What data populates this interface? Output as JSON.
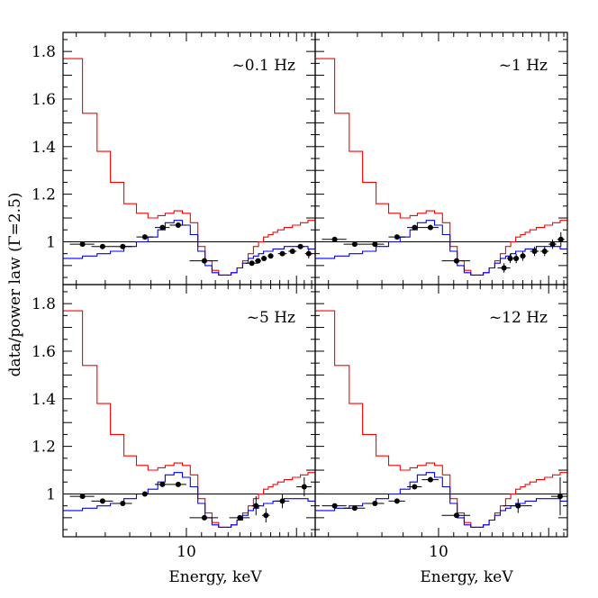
{
  "figure": {
    "ylabel": "data/power law (Γ=2.5)",
    "xlabel": "Energy, keV"
  },
  "chart_data": {
    "type": "scatter",
    "layout": "2x2 panels, shared axes",
    "x_scale": "log",
    "xlim": [
      4.6,
      22.5
    ],
    "ylim": [
      0.82,
      1.88
    ],
    "x_ticks_labeled": [
      10
    ],
    "y_ticks_labeled": [
      1,
      1.2,
      1.4,
      1.6,
      1.8
    ],
    "reference_line_y": 1,
    "colors": {
      "red_model": "#ff0000",
      "blue_model": "#0000ff",
      "data": "#000000",
      "axes": "#000000"
    },
    "red_model": {
      "edges": [
        4.6,
        5.2,
        5.7,
        6.2,
        6.75,
        7.3,
        7.85,
        8.35,
        8.75,
        9.25,
        9.75,
        10.25,
        10.75,
        11.25,
        11.75,
        12.25,
        12.75,
        13.25,
        13.75,
        14.25,
        14.75,
        15.25,
        15.75,
        16.25,
        16.75,
        17.25,
        17.75,
        18.5,
        19.5,
        20.5,
        21.5,
        22.5
      ],
      "values": [
        1.77,
        1.54,
        1.38,
        1.25,
        1.16,
        1.12,
        1.1,
        1.11,
        1.12,
        1.13,
        1.12,
        1.08,
        0.98,
        0.92,
        0.88,
        0.86,
        0.86,
        0.87,
        0.89,
        0.92,
        0.95,
        0.98,
        1.0,
        1.02,
        1.03,
        1.04,
        1.05,
        1.06,
        1.07,
        1.08,
        1.09
      ]
    },
    "blue_model": {
      "edges": [
        4.6,
        5.2,
        5.7,
        6.2,
        6.75,
        7.3,
        7.85,
        8.35,
        8.75,
        9.25,
        9.75,
        10.25,
        10.75,
        11.25,
        11.75,
        12.25,
        12.75,
        13.25,
        13.75,
        14.25,
        14.75,
        15.25,
        15.75,
        16.25,
        16.75,
        17.25,
        17.75,
        18.5,
        19.5,
        20.5,
        21.5,
        22.5
      ],
      "values": [
        0.93,
        0.94,
        0.95,
        0.96,
        0.98,
        1.0,
        1.02,
        1.05,
        1.08,
        1.09,
        1.07,
        1.03,
        0.96,
        0.9,
        0.87,
        0.86,
        0.86,
        0.87,
        0.89,
        0.91,
        0.93,
        0.94,
        0.95,
        0.96,
        0.96,
        0.97,
        0.97,
        0.98,
        0.98,
        0.98,
        0.97
      ]
    },
    "panels": [
      {
        "label": "~0.1 Hz",
        "points": [
          {
            "x": 5.2,
            "y": 0.99,
            "xerr": 0.4,
            "yerr": 0.0
          },
          {
            "x": 5.9,
            "y": 0.98,
            "xerr": 0.4,
            "yerr": 0.0
          },
          {
            "x": 6.7,
            "y": 0.98,
            "xerr": 0.4,
            "yerr": 0.0
          },
          {
            "x": 7.7,
            "y": 1.02,
            "xerr": 0.4,
            "yerr": 0.0
          },
          {
            "x": 8.6,
            "y": 1.06,
            "xerr": 0.4,
            "yerr": 0.0
          },
          {
            "x": 9.5,
            "y": 1.07,
            "xerr": 0.5,
            "yerr": 0.0
          },
          {
            "x": 11.2,
            "y": 0.92,
            "xerr": 1.0,
            "yerr": 0.0
          },
          {
            "x": 15.1,
            "y": 0.91,
            "xerr": 0.6,
            "yerr": 0.01
          },
          {
            "x": 15.7,
            "y": 0.92,
            "xerr": 0.3,
            "yerr": 0.01
          },
          {
            "x": 16.3,
            "y": 0.93,
            "xerr": 0.3,
            "yerr": 0.01
          },
          {
            "x": 17.0,
            "y": 0.94,
            "xerr": 0.3,
            "yerr": 0.01
          },
          {
            "x": 18.3,
            "y": 0.95,
            "xerr": 0.5,
            "yerr": 0.01
          },
          {
            "x": 19.5,
            "y": 0.96,
            "xerr": 0.5,
            "yerr": 0.01
          },
          {
            "x": 20.5,
            "y": 0.98,
            "xerr": 0.5,
            "yerr": 0.01
          },
          {
            "x": 21.6,
            "y": 0.95,
            "xerr": 0.5,
            "yerr": 0.02
          }
        ]
      },
      {
        "label": "~1 Hz",
        "points": [
          {
            "x": 5.2,
            "y": 1.01,
            "xerr": 0.4,
            "yerr": 0.0
          },
          {
            "x": 5.9,
            "y": 0.99,
            "xerr": 0.4,
            "yerr": 0.0
          },
          {
            "x": 6.7,
            "y": 0.99,
            "xerr": 0.4,
            "yerr": 0.0
          },
          {
            "x": 7.7,
            "y": 1.02,
            "xerr": 0.4,
            "yerr": 0.0
          },
          {
            "x": 8.6,
            "y": 1.06,
            "xerr": 0.4,
            "yerr": 0.0
          },
          {
            "x": 9.5,
            "y": 1.06,
            "xerr": 0.5,
            "yerr": 0.0
          },
          {
            "x": 11.2,
            "y": 0.92,
            "xerr": 1.0,
            "yerr": 0.0
          },
          {
            "x": 15.1,
            "y": 0.89,
            "xerr": 0.6,
            "yerr": 0.02
          },
          {
            "x": 15.7,
            "y": 0.93,
            "xerr": 0.3,
            "yerr": 0.02
          },
          {
            "x": 16.3,
            "y": 0.93,
            "xerr": 0.3,
            "yerr": 0.02
          },
          {
            "x": 17.0,
            "y": 0.94,
            "xerr": 0.3,
            "yerr": 0.02
          },
          {
            "x": 18.3,
            "y": 0.96,
            "xerr": 0.5,
            "yerr": 0.02
          },
          {
            "x": 19.5,
            "y": 0.96,
            "xerr": 0.5,
            "yerr": 0.02
          },
          {
            "x": 20.5,
            "y": 0.99,
            "xerr": 0.5,
            "yerr": 0.02
          },
          {
            "x": 21.6,
            "y": 1.01,
            "xerr": 0.5,
            "yerr": 0.03
          }
        ]
      },
      {
        "label": "~5 Hz",
        "points": [
          {
            "x": 5.2,
            "y": 0.99,
            "xerr": 0.4,
            "yerr": 0.0
          },
          {
            "x": 5.9,
            "y": 0.97,
            "xerr": 0.4,
            "yerr": 0.0
          },
          {
            "x": 6.7,
            "y": 0.96,
            "xerr": 0.4,
            "yerr": 0.0
          },
          {
            "x": 7.7,
            "y": 1.0,
            "xerr": 0.4,
            "yerr": 0.0
          },
          {
            "x": 8.6,
            "y": 1.04,
            "xerr": 0.4,
            "yerr": 0.0
          },
          {
            "x": 9.5,
            "y": 1.04,
            "xerr": 0.5,
            "yerr": 0.0
          },
          {
            "x": 11.2,
            "y": 0.9,
            "xerr": 1.0,
            "yerr": 0.0
          },
          {
            "x": 14.0,
            "y": 0.9,
            "xerr": 0.9,
            "yerr": 0.0
          },
          {
            "x": 15.5,
            "y": 0.95,
            "xerr": 0.4,
            "yerr": 0.04
          },
          {
            "x": 16.5,
            "y": 0.91,
            "xerr": 0.4,
            "yerr": 0.03
          },
          {
            "x": 18.3,
            "y": 0.97,
            "xerr": 0.8,
            "yerr": 0.03
          },
          {
            "x": 21.0,
            "y": 1.03,
            "xerr": 1.0,
            "yerr": 0.04
          }
        ]
      },
      {
        "label": "~12 Hz",
        "points": [
          {
            "x": 5.2,
            "y": 0.95,
            "xerr": 0.4,
            "yerr": 0.0
          },
          {
            "x": 5.9,
            "y": 0.94,
            "xerr": 0.4,
            "yerr": 0.0
          },
          {
            "x": 6.7,
            "y": 0.96,
            "xerr": 0.4,
            "yerr": 0.0
          },
          {
            "x": 7.7,
            "y": 0.97,
            "xerr": 0.4,
            "yerr": 0.0
          },
          {
            "x": 8.6,
            "y": 1.03,
            "xerr": 0.4,
            "yerr": 0.0
          },
          {
            "x": 9.5,
            "y": 1.06,
            "xerr": 0.5,
            "yerr": 0.0
          },
          {
            "x": 11.2,
            "y": 0.91,
            "xerr": 1.0,
            "yerr": 0.0
          },
          {
            "x": 16.5,
            "y": 0.95,
            "xerr": 1.5,
            "yerr": 0.03
          },
          {
            "x": 21.5,
            "y": 0.99,
            "xerr": 1.2,
            "yerr": 0.08
          }
        ]
      }
    ]
  }
}
